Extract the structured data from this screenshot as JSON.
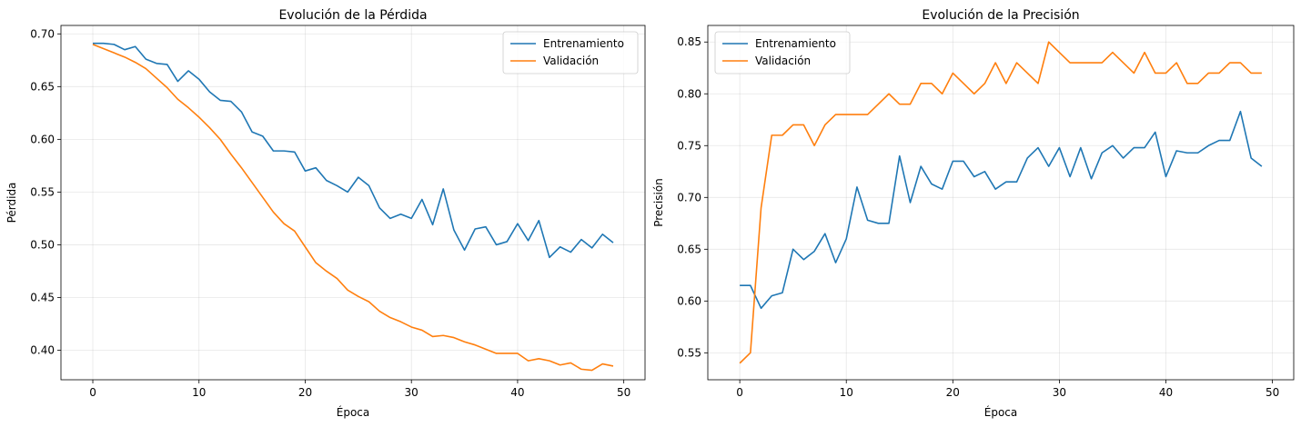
{
  "chart_data": [
    {
      "type": "line",
      "title": "Evolución de la Pérdida",
      "xlabel": "Época",
      "ylabel": "Pérdida",
      "xlim": [
        -3.0,
        52.0
      ],
      "ylim": [
        0.372,
        0.708
      ],
      "xticks": [
        0,
        10,
        20,
        30,
        40,
        50
      ],
      "yticks": [
        0.4,
        0.45,
        0.5,
        0.55,
        0.6,
        0.65,
        0.7
      ],
      "ytick_decimals": 2,
      "grid": true,
      "legend_position": "top-right",
      "x": [
        0,
        1,
        2,
        3,
        4,
        5,
        6,
        7,
        8,
        9,
        10,
        11,
        12,
        13,
        14,
        15,
        16,
        17,
        18,
        19,
        20,
        21,
        22,
        23,
        24,
        25,
        26,
        27,
        28,
        29,
        30,
        31,
        32,
        33,
        34,
        35,
        36,
        37,
        38,
        39,
        40,
        41,
        42,
        43,
        44,
        45,
        46,
        47,
        48,
        49
      ],
      "series": [
        {
          "name": "Entrenamiento",
          "color": "#1f77b4",
          "values": [
            0.691,
            0.691,
            0.69,
            0.685,
            0.688,
            0.676,
            0.672,
            0.671,
            0.655,
            0.665,
            0.657,
            0.645,
            0.637,
            0.636,
            0.626,
            0.607,
            0.603,
            0.589,
            0.589,
            0.588,
            0.57,
            0.573,
            0.561,
            0.556,
            0.55,
            0.564,
            0.556,
            0.535,
            0.525,
            0.529,
            0.525,
            0.543,
            0.519,
            0.553,
            0.514,
            0.495,
            0.515,
            0.517,
            0.5,
            0.503,
            0.52,
            0.504,
            0.523,
            0.488,
            0.498,
            0.493,
            0.505,
            0.497,
            0.51,
            0.502
          ]
        },
        {
          "name": "Validación",
          "color": "#ff7f0e",
          "values": [
            0.69,
            0.686,
            0.682,
            0.678,
            0.673,
            0.667,
            0.658,
            0.649,
            0.638,
            0.63,
            0.621,
            0.611,
            0.6,
            0.586,
            0.573,
            0.559,
            0.545,
            0.531,
            0.52,
            0.513,
            0.498,
            0.483,
            0.475,
            0.468,
            0.457,
            0.451,
            0.446,
            0.437,
            0.431,
            0.427,
            0.422,
            0.419,
            0.413,
            0.414,
            0.412,
            0.408,
            0.405,
            0.401,
            0.397,
            0.397,
            0.397,
            0.39,
            0.392,
            0.39,
            0.386,
            0.388,
            0.382,
            0.381,
            0.387,
            0.385
          ]
        }
      ]
    },
    {
      "type": "line",
      "title": "Evolución de la Precisión",
      "xlabel": "Época",
      "ylabel": "Precisión",
      "xlim": [
        -3.0,
        52.0
      ],
      "ylim": [
        0.524,
        0.866
      ],
      "xticks": [
        0,
        10,
        20,
        30,
        40,
        50
      ],
      "yticks": [
        0.55,
        0.6,
        0.65,
        0.7,
        0.75,
        0.8,
        0.85
      ],
      "ytick_decimals": 2,
      "grid": true,
      "legend_position": "top-left",
      "x": [
        0,
        1,
        2,
        3,
        4,
        5,
        6,
        7,
        8,
        9,
        10,
        11,
        12,
        13,
        14,
        15,
        16,
        17,
        18,
        19,
        20,
        21,
        22,
        23,
        24,
        25,
        26,
        27,
        28,
        29,
        30,
        31,
        32,
        33,
        34,
        35,
        36,
        37,
        38,
        39,
        40,
        41,
        42,
        43,
        44,
        45,
        46,
        47,
        48,
        49
      ],
      "series": [
        {
          "name": "Entrenamiento",
          "color": "#1f77b4",
          "values": [
            0.615,
            0.615,
            0.593,
            0.605,
            0.608,
            0.65,
            0.64,
            0.648,
            0.665,
            0.637,
            0.66,
            0.71,
            0.678,
            0.675,
            0.675,
            0.74,
            0.695,
            0.73,
            0.713,
            0.708,
            0.735,
            0.735,
            0.72,
            0.725,
            0.708,
            0.715,
            0.715,
            0.738,
            0.748,
            0.73,
            0.748,
            0.72,
            0.748,
            0.718,
            0.743,
            0.75,
            0.738,
            0.748,
            0.748,
            0.763,
            0.72,
            0.745,
            0.743,
            0.743,
            0.75,
            0.755,
            0.755,
            0.783,
            0.738,
            0.73
          ]
        },
        {
          "name": "Validación",
          "color": "#ff7f0e",
          "values": [
            0.54,
            0.55,
            0.69,
            0.76,
            0.76,
            0.77,
            0.77,
            0.75,
            0.77,
            0.78,
            0.78,
            0.78,
            0.78,
            0.79,
            0.8,
            0.79,
            0.79,
            0.81,
            0.81,
            0.8,
            0.82,
            0.81,
            0.8,
            0.81,
            0.83,
            0.81,
            0.83,
            0.82,
            0.81,
            0.85,
            0.84,
            0.83,
            0.83,
            0.83,
            0.83,
            0.84,
            0.83,
            0.82,
            0.84,
            0.82,
            0.82,
            0.83,
            0.81,
            0.81,
            0.82,
            0.82,
            0.83,
            0.83,
            0.82,
            0.82
          ]
        }
      ]
    }
  ]
}
